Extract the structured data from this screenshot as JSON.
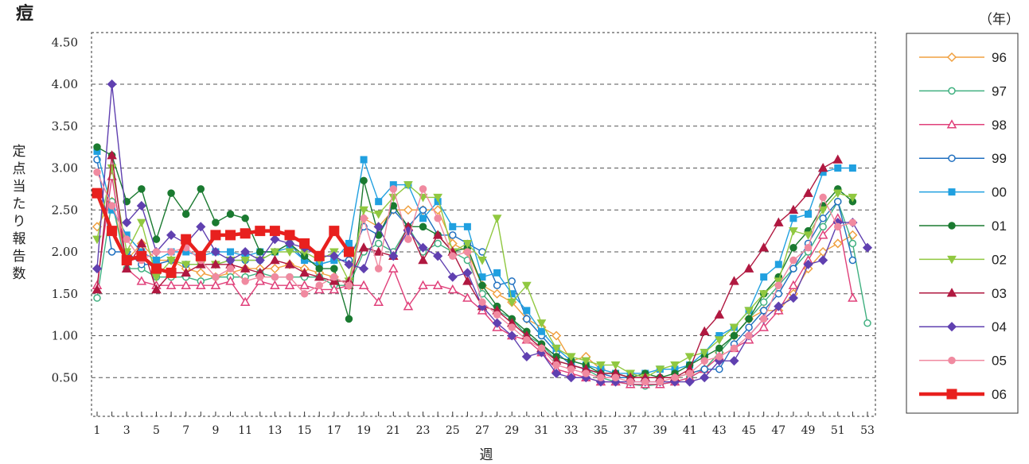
{
  "chart_data": {
    "type": "line",
    "title": "痘",
    "unit_label": "（年）",
    "xlabel": "週",
    "ylabel": "定点当たり報告数",
    "ylim": [
      0,
      4.5
    ],
    "yticks": [
      "4.50",
      "4.00",
      "3.50",
      "3.00",
      "2.50",
      "2.00",
      "1.50",
      "1.00",
      "0.50"
    ],
    "ytick_values": [
      4.5,
      4.0,
      3.5,
      3.0,
      2.5,
      2.0,
      1.5,
      1.0,
      0.5
    ],
    "xlim": [
      1,
      53
    ],
    "xticks": [
      1,
      3,
      5,
      7,
      9,
      11,
      13,
      15,
      17,
      19,
      21,
      23,
      25,
      27,
      29,
      31,
      33,
      35,
      37,
      39,
      41,
      43,
      45,
      47,
      49,
      51,
      53
    ],
    "grid": "horizontal-dashed",
    "legend_position": "right",
    "series": [
      {
        "name": "96",
        "color": "#f0a040",
        "marker": "diamond-open",
        "values": [
          2.3,
          2.6,
          1.9,
          2.1,
          1.9,
          1.9,
          1.8,
          1.75,
          1.7,
          1.75,
          1.8,
          1.8,
          1.8,
          1.85,
          1.8,
          1.75,
          1.7,
          1.6,
          2.4,
          2.3,
          2.5,
          2.5,
          2.5,
          2.5,
          2.1,
          2.0,
          1.6,
          1.5,
          1.4,
          1.2,
          1.1,
          1.0,
          0.7,
          0.75,
          0.6,
          0.55,
          0.5,
          0.5,
          0.5,
          0.5,
          0.55,
          0.6,
          0.8,
          1.0,
          1.2,
          1.3,
          1.3,
          1.5,
          1.8,
          2.0,
          2.1,
          2.2,
          null
        ]
      },
      {
        "name": "97",
        "color": "#40b080",
        "marker": "circle-open",
        "values": [
          1.45,
          2.6,
          1.8,
          1.8,
          1.7,
          1.7,
          1.7,
          1.65,
          1.7,
          1.7,
          1.7,
          1.75,
          1.7,
          1.7,
          1.7,
          1.7,
          1.6,
          1.6,
          2.0,
          2.1,
          2.0,
          2.3,
          2.0,
          2.1,
          2.0,
          1.9,
          1.5,
          1.3,
          1.2,
          1.0,
          0.9,
          0.7,
          0.65,
          0.6,
          0.5,
          0.45,
          0.42,
          0.4,
          0.42,
          0.45,
          0.5,
          0.6,
          0.8,
          1.0,
          1.2,
          1.4,
          1.6,
          1.8,
          2.0,
          2.3,
          2.6,
          2.1,
          1.15
        ]
      },
      {
        "name": "98",
        "color": "#e0407a",
        "marker": "triangle-open",
        "values": [
          1.6,
          2.9,
          1.8,
          1.65,
          1.6,
          1.6,
          1.6,
          1.6,
          1.6,
          1.65,
          1.4,
          1.65,
          1.6,
          1.6,
          1.6,
          1.55,
          1.55,
          1.6,
          1.6,
          1.4,
          1.8,
          1.35,
          1.6,
          1.6,
          1.55,
          1.45,
          1.3,
          1.1,
          1.0,
          0.95,
          0.8,
          0.6,
          0.55,
          0.5,
          0.45,
          0.45,
          0.42,
          0.42,
          0.42,
          0.45,
          0.5,
          0.6,
          0.75,
          0.85,
          0.95,
          1.1,
          1.3,
          1.6,
          1.9,
          2.2,
          2.4,
          1.45,
          null
        ]
      },
      {
        "name": "99",
        "color": "#2070c0",
        "marker": "circle-open",
        "values": [
          3.1,
          2.0,
          2.0,
          1.85,
          1.85,
          1.9,
          1.85,
          1.85,
          1.85,
          1.9,
          1.9,
          1.9,
          2.0,
          2.1,
          1.9,
          1.85,
          1.9,
          1.9,
          2.3,
          2.2,
          2.5,
          2.3,
          2.5,
          2.2,
          2.2,
          2.1,
          2.0,
          1.6,
          1.65,
          1.2,
          1.0,
          0.8,
          0.65,
          0.6,
          0.55,
          0.5,
          0.5,
          0.5,
          0.5,
          0.5,
          0.55,
          0.6,
          0.6,
          0.9,
          1.1,
          1.3,
          1.5,
          1.8,
          2.1,
          2.4,
          2.6,
          1.9,
          null
        ]
      },
      {
        "name": "00",
        "color": "#20a0e0",
        "marker": "square",
        "values": [
          3.2,
          2.5,
          2.2,
          2.0,
          1.9,
          2.0,
          2.0,
          1.95,
          2.0,
          2.0,
          1.95,
          2.0,
          2.0,
          2.05,
          1.9,
          1.85,
          1.9,
          2.1,
          3.1,
          2.6,
          2.8,
          2.8,
          2.4,
          2.6,
          2.3,
          2.3,
          1.7,
          1.75,
          1.5,
          1.3,
          1.05,
          0.85,
          0.7,
          0.65,
          0.6,
          0.55,
          0.55,
          0.55,
          0.6,
          0.6,
          0.65,
          0.8,
          1.0,
          1.1,
          1.3,
          1.7,
          1.85,
          2.4,
          2.45,
          2.95,
          3.0,
          3.0,
          null
        ]
      },
      {
        "name": "01",
        "color": "#1a7a30",
        "marker": "circle",
        "values": [
          3.25,
          3.15,
          2.6,
          2.75,
          2.15,
          2.7,
          2.45,
          2.75,
          2.35,
          2.45,
          2.4,
          2.0,
          2.0,
          2.1,
          1.95,
          1.8,
          1.8,
          1.2,
          2.85,
          2.2,
          2.55,
          2.3,
          2.3,
          2.2,
          2.0,
          2.05,
          1.6,
          1.35,
          1.2,
          1.05,
          0.9,
          0.75,
          0.7,
          0.65,
          0.55,
          0.55,
          0.5,
          0.55,
          0.5,
          0.55,
          0.65,
          0.75,
          0.85,
          1.0,
          1.2,
          1.5,
          1.7,
          2.05,
          2.25,
          2.55,
          2.75,
          2.6,
          null
        ]
      },
      {
        "name": "02",
        "color": "#90c840",
        "marker": "triangle-down",
        "values": [
          2.15,
          3.0,
          2.0,
          2.35,
          1.7,
          1.9,
          1.85,
          1.85,
          1.85,
          1.9,
          1.9,
          1.9,
          2.0,
          2.0,
          2.0,
          1.9,
          2.0,
          1.65,
          2.5,
          2.45,
          2.65,
          2.8,
          2.65,
          2.65,
          2.0,
          2.1,
          1.9,
          2.4,
          1.4,
          1.6,
          1.15,
          0.85,
          0.75,
          0.7,
          0.65,
          0.65,
          0.55,
          0.5,
          0.6,
          0.65,
          0.75,
          0.8,
          0.95,
          1.1,
          1.3,
          1.5,
          1.65,
          2.25,
          2.2,
          2.5,
          2.7,
          2.65,
          null
        ]
      },
      {
        "name": "03",
        "color": "#b01840",
        "marker": "triangle",
        "values": [
          1.55,
          3.15,
          1.8,
          2.1,
          1.55,
          1.75,
          1.75,
          1.85,
          1.85,
          1.85,
          1.8,
          1.75,
          1.9,
          1.85,
          1.75,
          1.7,
          1.65,
          1.65,
          2.05,
          2.0,
          1.95,
          2.3,
          1.9,
          2.2,
          2.0,
          1.65,
          1.35,
          1.3,
          1.15,
          1.0,
          0.85,
          0.7,
          0.65,
          0.6,
          0.55,
          0.55,
          0.5,
          0.5,
          0.5,
          0.5,
          0.6,
          1.05,
          1.25,
          1.65,
          1.8,
          2.05,
          2.35,
          2.5,
          2.7,
          3.0,
          3.1,
          null,
          null
        ]
      },
      {
        "name": "04",
        "color": "#6040b0",
        "marker": "diamond",
        "values": [
          1.8,
          4.0,
          2.35,
          2.55,
          2.0,
          2.2,
          2.1,
          2.3,
          2.0,
          1.9,
          2.0,
          1.9,
          2.15,
          2.1,
          2.05,
          1.95,
          1.95,
          1.85,
          1.8,
          2.3,
          1.95,
          2.25,
          2.05,
          1.95,
          1.7,
          1.75,
          1.35,
          1.15,
          1.0,
          0.75,
          0.8,
          0.55,
          0.5,
          0.5,
          0.45,
          0.45,
          0.45,
          0.45,
          0.45,
          0.45,
          0.45,
          0.5,
          0.7,
          0.7,
          1.0,
          1.2,
          1.35,
          1.45,
          1.85,
          1.9,
          2.35,
          2.35,
          2.05
        ]
      },
      {
        "name": "05",
        "color": "#f08aa0",
        "marker": "circle",
        "values": [
          2.95,
          2.55,
          2.15,
          1.9,
          2.0,
          2.0,
          2.05,
          1.9,
          1.7,
          1.8,
          1.65,
          1.7,
          1.7,
          1.7,
          1.5,
          1.6,
          1.7,
          1.6,
          2.4,
          1.8,
          2.75,
          2.15,
          2.75,
          2.4,
          1.95,
          2.0,
          1.4,
          1.25,
          1.1,
          0.95,
          0.85,
          0.65,
          0.6,
          0.55,
          0.5,
          0.5,
          0.45,
          0.45,
          0.45,
          0.5,
          0.55,
          0.7,
          0.75,
          0.85,
          1.0,
          1.2,
          1.6,
          1.9,
          2.05,
          2.65,
          2.3,
          2.35,
          null
        ]
      },
      {
        "name": "06",
        "color": "#e8201e",
        "marker": "square-bold",
        "bold": true,
        "values": [
          2.7,
          2.25,
          1.9,
          1.95,
          1.8,
          1.75,
          2.15,
          1.95,
          2.2,
          2.2,
          2.22,
          2.25,
          2.25,
          2.2,
          2.1,
          1.95,
          2.25,
          2.0,
          null,
          null,
          null,
          null,
          null,
          null,
          null,
          null,
          null,
          null,
          null,
          null,
          null,
          null,
          null,
          null,
          null,
          null,
          null,
          null,
          null,
          null,
          null,
          null,
          null,
          null,
          null,
          null,
          null,
          null,
          null,
          null,
          null,
          null,
          null
        ]
      }
    ]
  }
}
